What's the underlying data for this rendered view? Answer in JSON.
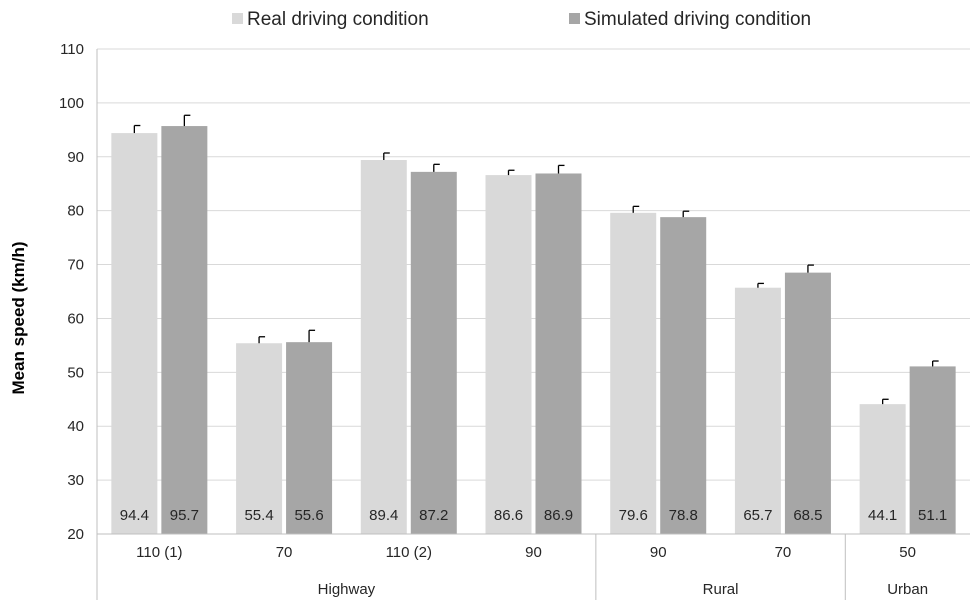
{
  "chart_data": {
    "type": "bar",
    "title": "",
    "ylabel": "Mean speed (km/h)",
    "ylim": [
      20,
      110
    ],
    "yticks": [
      20,
      30,
      40,
      50,
      60,
      70,
      80,
      90,
      100,
      110
    ],
    "grid": true,
    "legend_position": "top",
    "categories": [
      "110 (1)",
      "70",
      "110 (2)",
      "90",
      "90",
      "70",
      "50"
    ],
    "groups": [
      {
        "label": "Highway",
        "span": 4
      },
      {
        "label": "Rural",
        "span": 2
      },
      {
        "label": "Urban",
        "span": 1
      }
    ],
    "series": [
      {
        "name": "Real driving condition",
        "color": "#d9d9d9",
        "values": [
          94.4,
          55.4,
          89.4,
          86.6,
          79.6,
          65.7,
          44.1
        ],
        "labels": [
          "94.4",
          "55.4",
          "89.4",
          "86.6",
          "79.6",
          "65.7",
          "44.1"
        ],
        "error": [
          1.4,
          1.2,
          1.3,
          0.9,
          1.2,
          0.8,
          0.9
        ]
      },
      {
        "name": "Simulated driving condition",
        "color": "#a6a6a6",
        "values": [
          95.7,
          55.6,
          87.2,
          86.9,
          78.8,
          68.5,
          51.1
        ],
        "labels": [
          "95.7",
          "55.6",
          "87.2",
          "86.9",
          "78.8",
          "68.5",
          "51.1"
        ],
        "error": [
          2.0,
          2.2,
          1.4,
          1.5,
          1.1,
          1.4,
          1.0
        ]
      }
    ]
  }
}
